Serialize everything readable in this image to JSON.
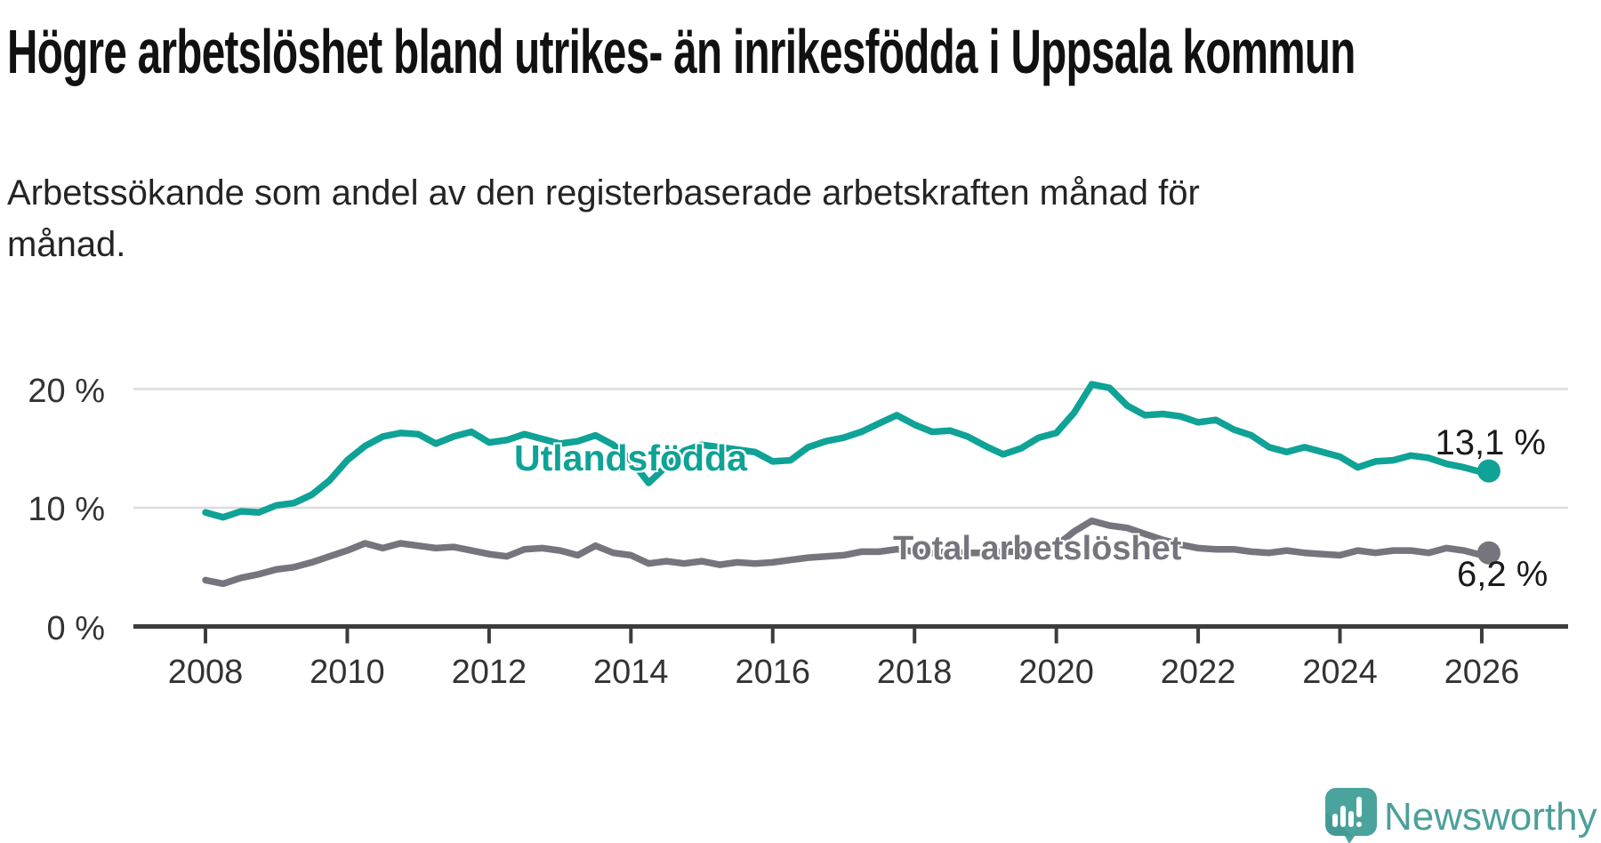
{
  "header": {
    "title": "Högre arbetslöshet bland utrikes- än inrikesfödda i Uppsala kommun",
    "subtitle": "Arbetssökande som andel av den registerbaserade arbetskraften månad för månad."
  },
  "chart_data": {
    "type": "line",
    "title": "Högre arbetslöshet bland utrikes- än inrikesfödda i Uppsala kommun",
    "xlabel": "",
    "ylabel": "",
    "grid": "horizontal",
    "legend_position": "inline-labels",
    "xlim": [
      2007,
      2027
    ],
    "ylim": [
      0,
      21
    ],
    "x_ticks": [
      "2008",
      "2010",
      "2012",
      "2014",
      "2016",
      "2018",
      "2020",
      "2022",
      "2024",
      "2026"
    ],
    "x_tick_years": [
      2008,
      2010,
      2012,
      2014,
      2016,
      2018,
      2020,
      2022,
      2024,
      2026
    ],
    "y_ticks": [
      {
        "value": 0,
        "label": "0 %"
      },
      {
        "value": 10,
        "label": "10 %"
      },
      {
        "value": 20,
        "label": "20 %"
      }
    ],
    "x": [
      2008.0,
      2008.25,
      2008.5,
      2008.75,
      2009.0,
      2009.25,
      2009.5,
      2009.75,
      2010.0,
      2010.25,
      2010.5,
      2010.75,
      2011.0,
      2011.25,
      2011.5,
      2011.75,
      2012.0,
      2012.25,
      2012.5,
      2012.75,
      2013.0,
      2013.25,
      2013.5,
      2013.75,
      2014.0,
      2014.25,
      2014.5,
      2014.75,
      2015.0,
      2015.25,
      2015.5,
      2015.75,
      2016.0,
      2016.25,
      2016.5,
      2016.75,
      2017.0,
      2017.25,
      2017.5,
      2017.75,
      2018.0,
      2018.25,
      2018.5,
      2018.75,
      2019.0,
      2019.25,
      2019.5,
      2019.75,
      2020.0,
      2020.25,
      2020.5,
      2020.75,
      2021.0,
      2021.25,
      2021.5,
      2021.75,
      2022.0,
      2022.25,
      2022.5,
      2022.75,
      2023.0,
      2023.25,
      2023.5,
      2023.75,
      2024.0,
      2024.25,
      2024.5,
      2024.75,
      2025.0,
      2025.25,
      2025.5,
      2025.75,
      2026.0,
      2026.1
    ],
    "series": [
      {
        "name": "Utlandsfödda",
        "color": "#0fa296",
        "end_label": "13,1 %",
        "end_value": 13.1,
        "values": [
          9.6,
          9.2,
          9.7,
          9.6,
          10.2,
          10.4,
          11.1,
          12.3,
          14.0,
          15.2,
          16.0,
          16.3,
          16.2,
          15.4,
          16.0,
          16.4,
          15.5,
          15.7,
          16.2,
          15.8,
          15.4,
          15.6,
          16.1,
          15.3,
          14.0,
          12.1,
          13.5,
          14.8,
          15.3,
          15.1,
          14.9,
          14.7,
          13.9,
          14.0,
          15.1,
          15.6,
          15.9,
          16.4,
          17.1,
          17.8,
          17.0,
          16.4,
          16.5,
          16.0,
          15.2,
          14.5,
          15.0,
          15.9,
          16.3,
          18.0,
          20.4,
          20.1,
          18.6,
          17.8,
          17.9,
          17.7,
          17.2,
          17.4,
          16.6,
          16.1,
          15.1,
          14.7,
          15.1,
          14.7,
          14.3,
          13.4,
          13.9,
          14.0,
          14.4,
          14.2,
          13.7,
          13.4,
          13.0,
          13.1
        ]
      },
      {
        "name": "Total arbetslöshet",
        "color": "#76757d",
        "end_label": "6,2 %",
        "end_value": 6.2,
        "values": [
          3.9,
          3.6,
          4.1,
          4.4,
          4.8,
          5.0,
          5.4,
          5.9,
          6.4,
          7.0,
          6.6,
          7.0,
          6.8,
          6.6,
          6.7,
          6.4,
          6.1,
          5.9,
          6.5,
          6.6,
          6.4,
          6.0,
          6.8,
          6.2,
          6.0,
          5.3,
          5.5,
          5.3,
          5.5,
          5.2,
          5.4,
          5.3,
          5.4,
          5.6,
          5.8,
          5.9,
          6.0,
          6.3,
          6.3,
          6.5,
          6.3,
          6.2,
          6.3,
          6.2,
          6.2,
          6.3,
          6.3,
          6.4,
          6.8,
          8.0,
          8.9,
          8.5,
          8.3,
          7.8,
          7.3,
          6.9,
          6.6,
          6.5,
          6.5,
          6.3,
          6.2,
          6.4,
          6.2,
          6.1,
          6.0,
          6.4,
          6.2,
          6.4,
          6.4,
          6.2,
          6.6,
          6.4,
          6.0,
          6.2
        ]
      }
    ],
    "colors": {
      "grid": "#dcdcdc",
      "axis": "#3c3c3c",
      "tick_text": "#333333",
      "title_text": "#111111"
    }
  },
  "footer": {
    "brand": "Newsworthy",
    "brand_color": "#4d9f9a",
    "logo_icon": "speech-bubble-bar-chart-icon",
    "logo_color": "#4ba39d"
  }
}
